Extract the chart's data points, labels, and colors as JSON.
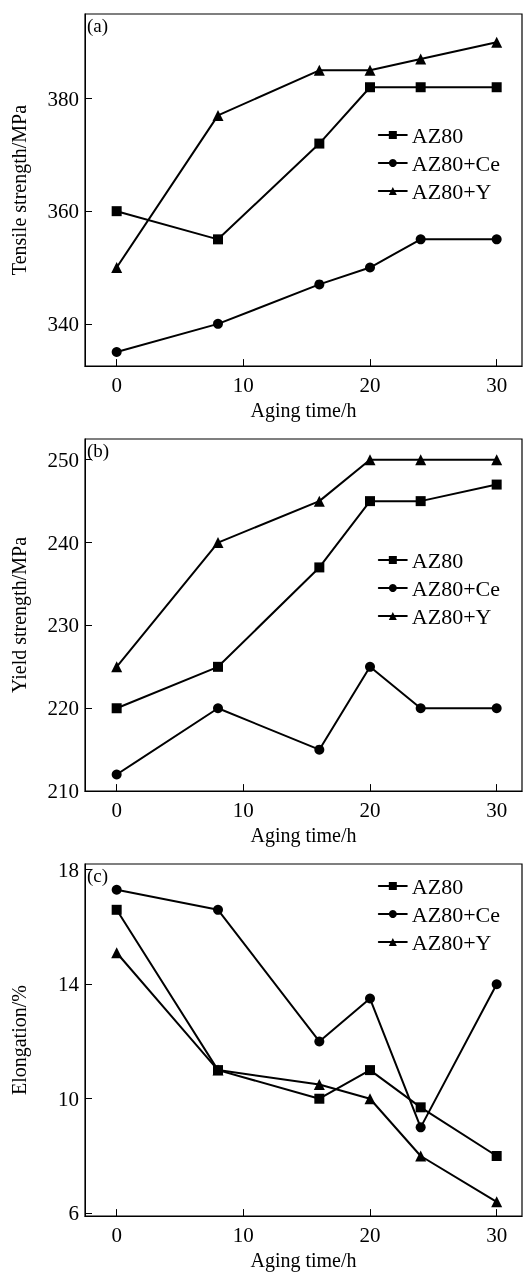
{
  "chart_data": [
    {
      "type": "line",
      "title": "(a)",
      "xlabel": "Aging time/h",
      "ylabel": "Tensile strength/MPa",
      "x": [
        0,
        8,
        16,
        20,
        24,
        30
      ],
      "xlim": [
        -2.5,
        32
      ],
      "xticks": [
        0,
        10,
        20,
        30
      ],
      "ylim": [
        332.5,
        395
      ],
      "yticks": [
        340,
        360,
        380
      ],
      "grid": false,
      "legend": "right",
      "line_style": "solid",
      "series": [
        {
          "name": "AZ80",
          "color": "#000000",
          "marker": "square",
          "values": [
            360,
            355,
            372,
            382,
            382,
            382
          ]
        },
        {
          "name": "AZ80+Ce",
          "color": "#000000",
          "marker": "circle",
          "values": [
            335,
            340,
            347,
            350,
            355,
            355
          ]
        },
        {
          "name": "AZ80+Y",
          "color": "#000000",
          "marker": "triangle",
          "values": [
            350,
            377,
            385,
            385,
            387,
            390
          ]
        }
      ]
    },
    {
      "type": "line",
      "title": "(b)",
      "xlabel": "Aging time/h",
      "ylabel": "Yield strength/MPa",
      "x": [
        0,
        8,
        16,
        20,
        24,
        30
      ],
      "xlim": [
        -2.5,
        32
      ],
      "xticks": [
        0,
        10,
        20,
        30
      ],
      "ylim": [
        210,
        252.5
      ],
      "yticks": [
        210,
        220,
        230,
        240,
        250
      ],
      "grid": false,
      "legend": "right",
      "line_style": "solid",
      "series": [
        {
          "name": "AZ80",
          "color": "#000000",
          "marker": "square",
          "values": [
            220,
            225,
            237,
            245,
            245,
            247
          ]
        },
        {
          "name": "AZ80+Ce",
          "color": "#000000",
          "marker": "circle",
          "values": [
            212,
            220,
            215,
            225,
            220,
            220
          ]
        },
        {
          "name": "AZ80+Y",
          "color": "#000000",
          "marker": "triangle",
          "values": [
            225,
            240,
            245,
            250,
            250,
            250
          ]
        }
      ]
    },
    {
      "type": "line",
      "title": "(c)",
      "xlabel": "Aging time/h",
      "ylabel": "Elongation/%",
      "x": [
        0,
        8,
        16,
        20,
        24,
        30
      ],
      "xlim": [
        -2.5,
        32
      ],
      "xticks": [
        0,
        10,
        20,
        30
      ],
      "ylim": [
        5.9,
        18.2
      ],
      "yticks": [
        6,
        10,
        14,
        18
      ],
      "grid": false,
      "legend": "top right",
      "line_style": "solid",
      "series": [
        {
          "name": "AZ80",
          "color": "#000000",
          "marker": "square",
          "values": [
            16.6,
            11,
            10,
            11,
            9.7,
            8
          ]
        },
        {
          "name": "AZ80+Ce",
          "color": "#000000",
          "marker": "circle",
          "values": [
            17.3,
            16.6,
            12,
            13.5,
            9,
            14
          ]
        },
        {
          "name": "AZ80+Y",
          "color": "#000000",
          "marker": "triangle",
          "values": [
            15.1,
            11,
            10.5,
            10,
            8,
            6.4
          ]
        }
      ]
    }
  ]
}
